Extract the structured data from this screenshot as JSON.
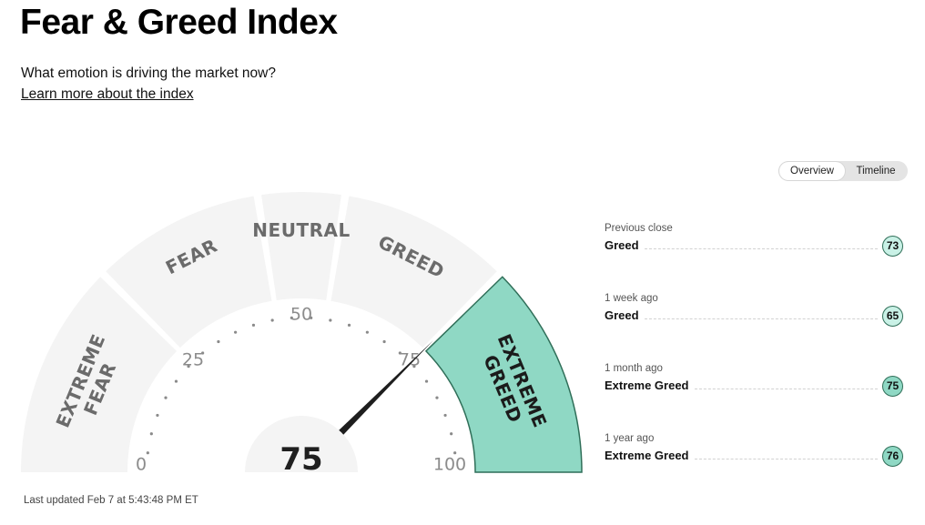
{
  "header": {
    "title": "Fear & Greed Index",
    "subtitle": "What emotion is driving the market now?",
    "learn_link": "Learn more about the index"
  },
  "toggle": {
    "overview": "Overview",
    "timeline": "Timeline",
    "selected": "Overview"
  },
  "gauge": {
    "value": "75",
    "value_number": 75,
    "scale_labels": [
      "0",
      "25",
      "50",
      "75",
      "100"
    ],
    "zones": {
      "extreme_fear": [
        "EXTREME",
        "FEAR"
      ],
      "fear": "FEAR",
      "neutral": "NEUTRAL",
      "greed": "GREED",
      "extreme_greed": [
        "EXTREME",
        "GREED"
      ]
    },
    "active_zone": "extreme_greed",
    "colors": {
      "zone_fill": "#f4f4f4",
      "active_fill": "#8fd8c4",
      "active_stroke": "#2f6e58",
      "needle": "#1e1e1e"
    }
  },
  "last_updated": "Last updated Feb 7 at 5:43:48 PM ET",
  "history": [
    {
      "caption": "Previous close",
      "rating": "Greed",
      "value": "73",
      "color": "#c9f1e6"
    },
    {
      "caption": "1 week ago",
      "rating": "Greed",
      "value": "65",
      "color": "#c9f1e6"
    },
    {
      "caption": "1 month ago",
      "rating": "Extreme Greed",
      "value": "75",
      "color": "#8fd8c4"
    },
    {
      "caption": "1 year ago",
      "rating": "Extreme Greed",
      "value": "76",
      "color": "#8fd8c4"
    }
  ]
}
